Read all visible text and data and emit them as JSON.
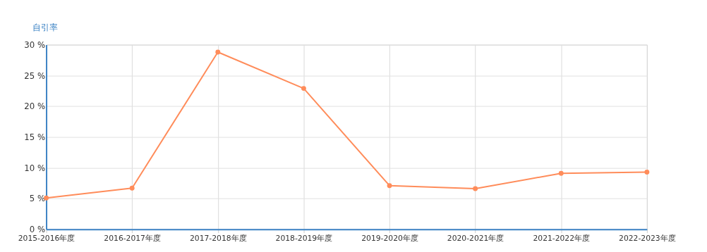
{
  "chart_data": {
    "type": "line",
    "ylabel": "自引率",
    "categories": [
      "2015-2016年度",
      "2016-2017年度",
      "2017-2018年度",
      "2018-2019年度",
      "2019-2020年度",
      "2020-2021年度",
      "2021-2022年度",
      "2022-2023年度"
    ],
    "series": [
      {
        "color": "#ff8c5a",
        "values": [
          5.1,
          6.7,
          28.8,
          22.9,
          7.1,
          6.6,
          9.1,
          9.3
        ]
      }
    ],
    "ylim": [
      0,
      30
    ],
    "yticks": [
      {
        "value": 0,
        "label": "0 %"
      },
      {
        "value": 5,
        "label": "5 %"
      },
      {
        "value": 10,
        "label": "10 %"
      },
      {
        "value": 15,
        "label": "15 %"
      },
      {
        "value": 20,
        "label": "20 %"
      },
      {
        "value": 25,
        "label": "25 %"
      },
      {
        "value": 30,
        "label": "30 %"
      }
    ],
    "grid": true,
    "marker": "circle",
    "line_style": "solid"
  }
}
